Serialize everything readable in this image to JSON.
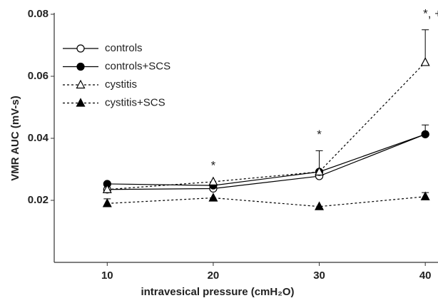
{
  "chart_data": {
    "type": "line",
    "xlabel": "intravesical pressure (cmH₂O)",
    "ylabel": "VMR AUC (mV-s)",
    "x": [
      10,
      20,
      30,
      40
    ],
    "xlim": [
      5,
      41.2
    ],
    "xticks": [
      10,
      20,
      30,
      40
    ],
    "ylim": [
      0,
      0.08
    ],
    "yticks": [
      0.02,
      0.04,
      0.06,
      0.08
    ],
    "legend": "upper left",
    "series": [
      {
        "name": "controls",
        "color": "#000000",
        "marker": "circle",
        "filled": false,
        "linestyle": "solid",
        "values": [
          0.0235,
          0.0238,
          0.0278,
          0.0413
        ],
        "errors": [
          null,
          null,
          null,
          null
        ]
      },
      {
        "name": "controls+SCS",
        "color": "#000000",
        "marker": "circle",
        "filled": true,
        "linestyle": "solid",
        "values": [
          0.0253,
          0.0248,
          0.0292,
          0.0413
        ],
        "errors": [
          null,
          null,
          null,
          0.003
        ]
      },
      {
        "name": "cystitis",
        "color": "#000000",
        "marker": "triangle",
        "filled": false,
        "linestyle": "dashed",
        "values": [
          0.0235,
          0.026,
          0.0292,
          0.0645
        ],
        "errors": [
          null,
          null,
          0.0068,
          0.0105
        ]
      },
      {
        "name": "cystitis+SCS",
        "color": "#000000",
        "marker": "triangle",
        "filled": true,
        "linestyle": "dashed",
        "values": [
          0.019,
          0.0208,
          0.018,
          0.0212
        ],
        "errors": [
          0.0015,
          null,
          null,
          0.0013
        ]
      }
    ],
    "annotations": [
      {
        "text": "*",
        "x": 20
      },
      {
        "text": "*",
        "x": 30
      },
      {
        "text": "*, +",
        "x": 40
      }
    ]
  }
}
